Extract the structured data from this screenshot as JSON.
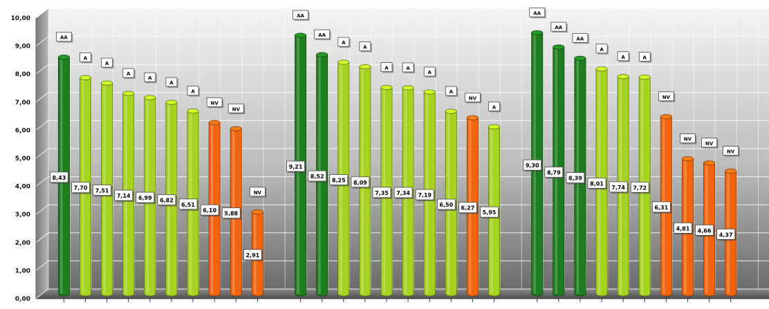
{
  "chart_data": {
    "type": "bar",
    "title": "",
    "xlabel": "",
    "ylabel": "",
    "ylim": [
      0,
      10
    ],
    "y_ticks": [
      "0,00",
      "1,00",
      "2,00",
      "3,00",
      "4,00",
      "5,00",
      "6,00",
      "7,00",
      "8,00",
      "9,00",
      "10,00"
    ],
    "grid": true,
    "legend": "none",
    "colors": {
      "AA": "#1e7d1e",
      "A": "#a6d321",
      "NV": "#f2650f"
    },
    "groups": [
      {
        "bars": [
          {
            "value": 8.43,
            "label": "8,43",
            "class": "AA"
          },
          {
            "value": 7.7,
            "label": "7,70",
            "class": "A"
          },
          {
            "value": 7.51,
            "label": "7,51",
            "class": "A"
          },
          {
            "value": 7.14,
            "label": "7,14",
            "class": "A"
          },
          {
            "value": 6.99,
            "label": "6,99",
            "class": "A"
          },
          {
            "value": 6.82,
            "label": "6,82",
            "class": "A"
          },
          {
            "value": 6.51,
            "label": "6,51",
            "class": "A"
          },
          {
            "value": 6.1,
            "label": "6,10",
            "class": "NV"
          },
          {
            "value": 5.88,
            "label": "5,88",
            "class": "NV"
          },
          {
            "value": 2.91,
            "label": "2,91",
            "class": "NV"
          }
        ]
      },
      {
        "bars": [
          {
            "value": 9.21,
            "label": "9,21",
            "class": "AA"
          },
          {
            "value": 8.52,
            "label": "8,52",
            "class": "AA"
          },
          {
            "value": 8.25,
            "label": "8,25",
            "class": "A"
          },
          {
            "value": 8.09,
            "label": "8,09",
            "class": "A"
          },
          {
            "value": 7.35,
            "label": "7,35",
            "class": "A"
          },
          {
            "value": 7.34,
            "label": "7,34",
            "class": "A"
          },
          {
            "value": 7.19,
            "label": "7,19",
            "class": "A"
          },
          {
            "value": 6.5,
            "label": "6,50",
            "class": "A"
          },
          {
            "value": 6.27,
            "label": "6,27",
            "class": "NV"
          },
          {
            "value": 5.95,
            "label": "5,95",
            "class": "A"
          }
        ]
      },
      {
        "bars": [
          {
            "value": 9.3,
            "label": "9,30",
            "class": "AA"
          },
          {
            "value": 8.79,
            "label": "8,79",
            "class": "AA"
          },
          {
            "value": 8.39,
            "label": "8,39",
            "class": "AA"
          },
          {
            "value": 8.01,
            "label": "8,01",
            "class": "A"
          },
          {
            "value": 7.74,
            "label": "7,74",
            "class": "A"
          },
          {
            "value": 7.72,
            "label": "7,72",
            "class": "A"
          },
          {
            "value": 6.31,
            "label": "6,31",
            "class": "NV"
          },
          {
            "value": 4.81,
            "label": "4,81",
            "class": "NV"
          },
          {
            "value": 4.66,
            "label": "4,66",
            "class": "NV"
          },
          {
            "value": 4.37,
            "label": "4,37",
            "class": "NV"
          }
        ]
      }
    ]
  }
}
